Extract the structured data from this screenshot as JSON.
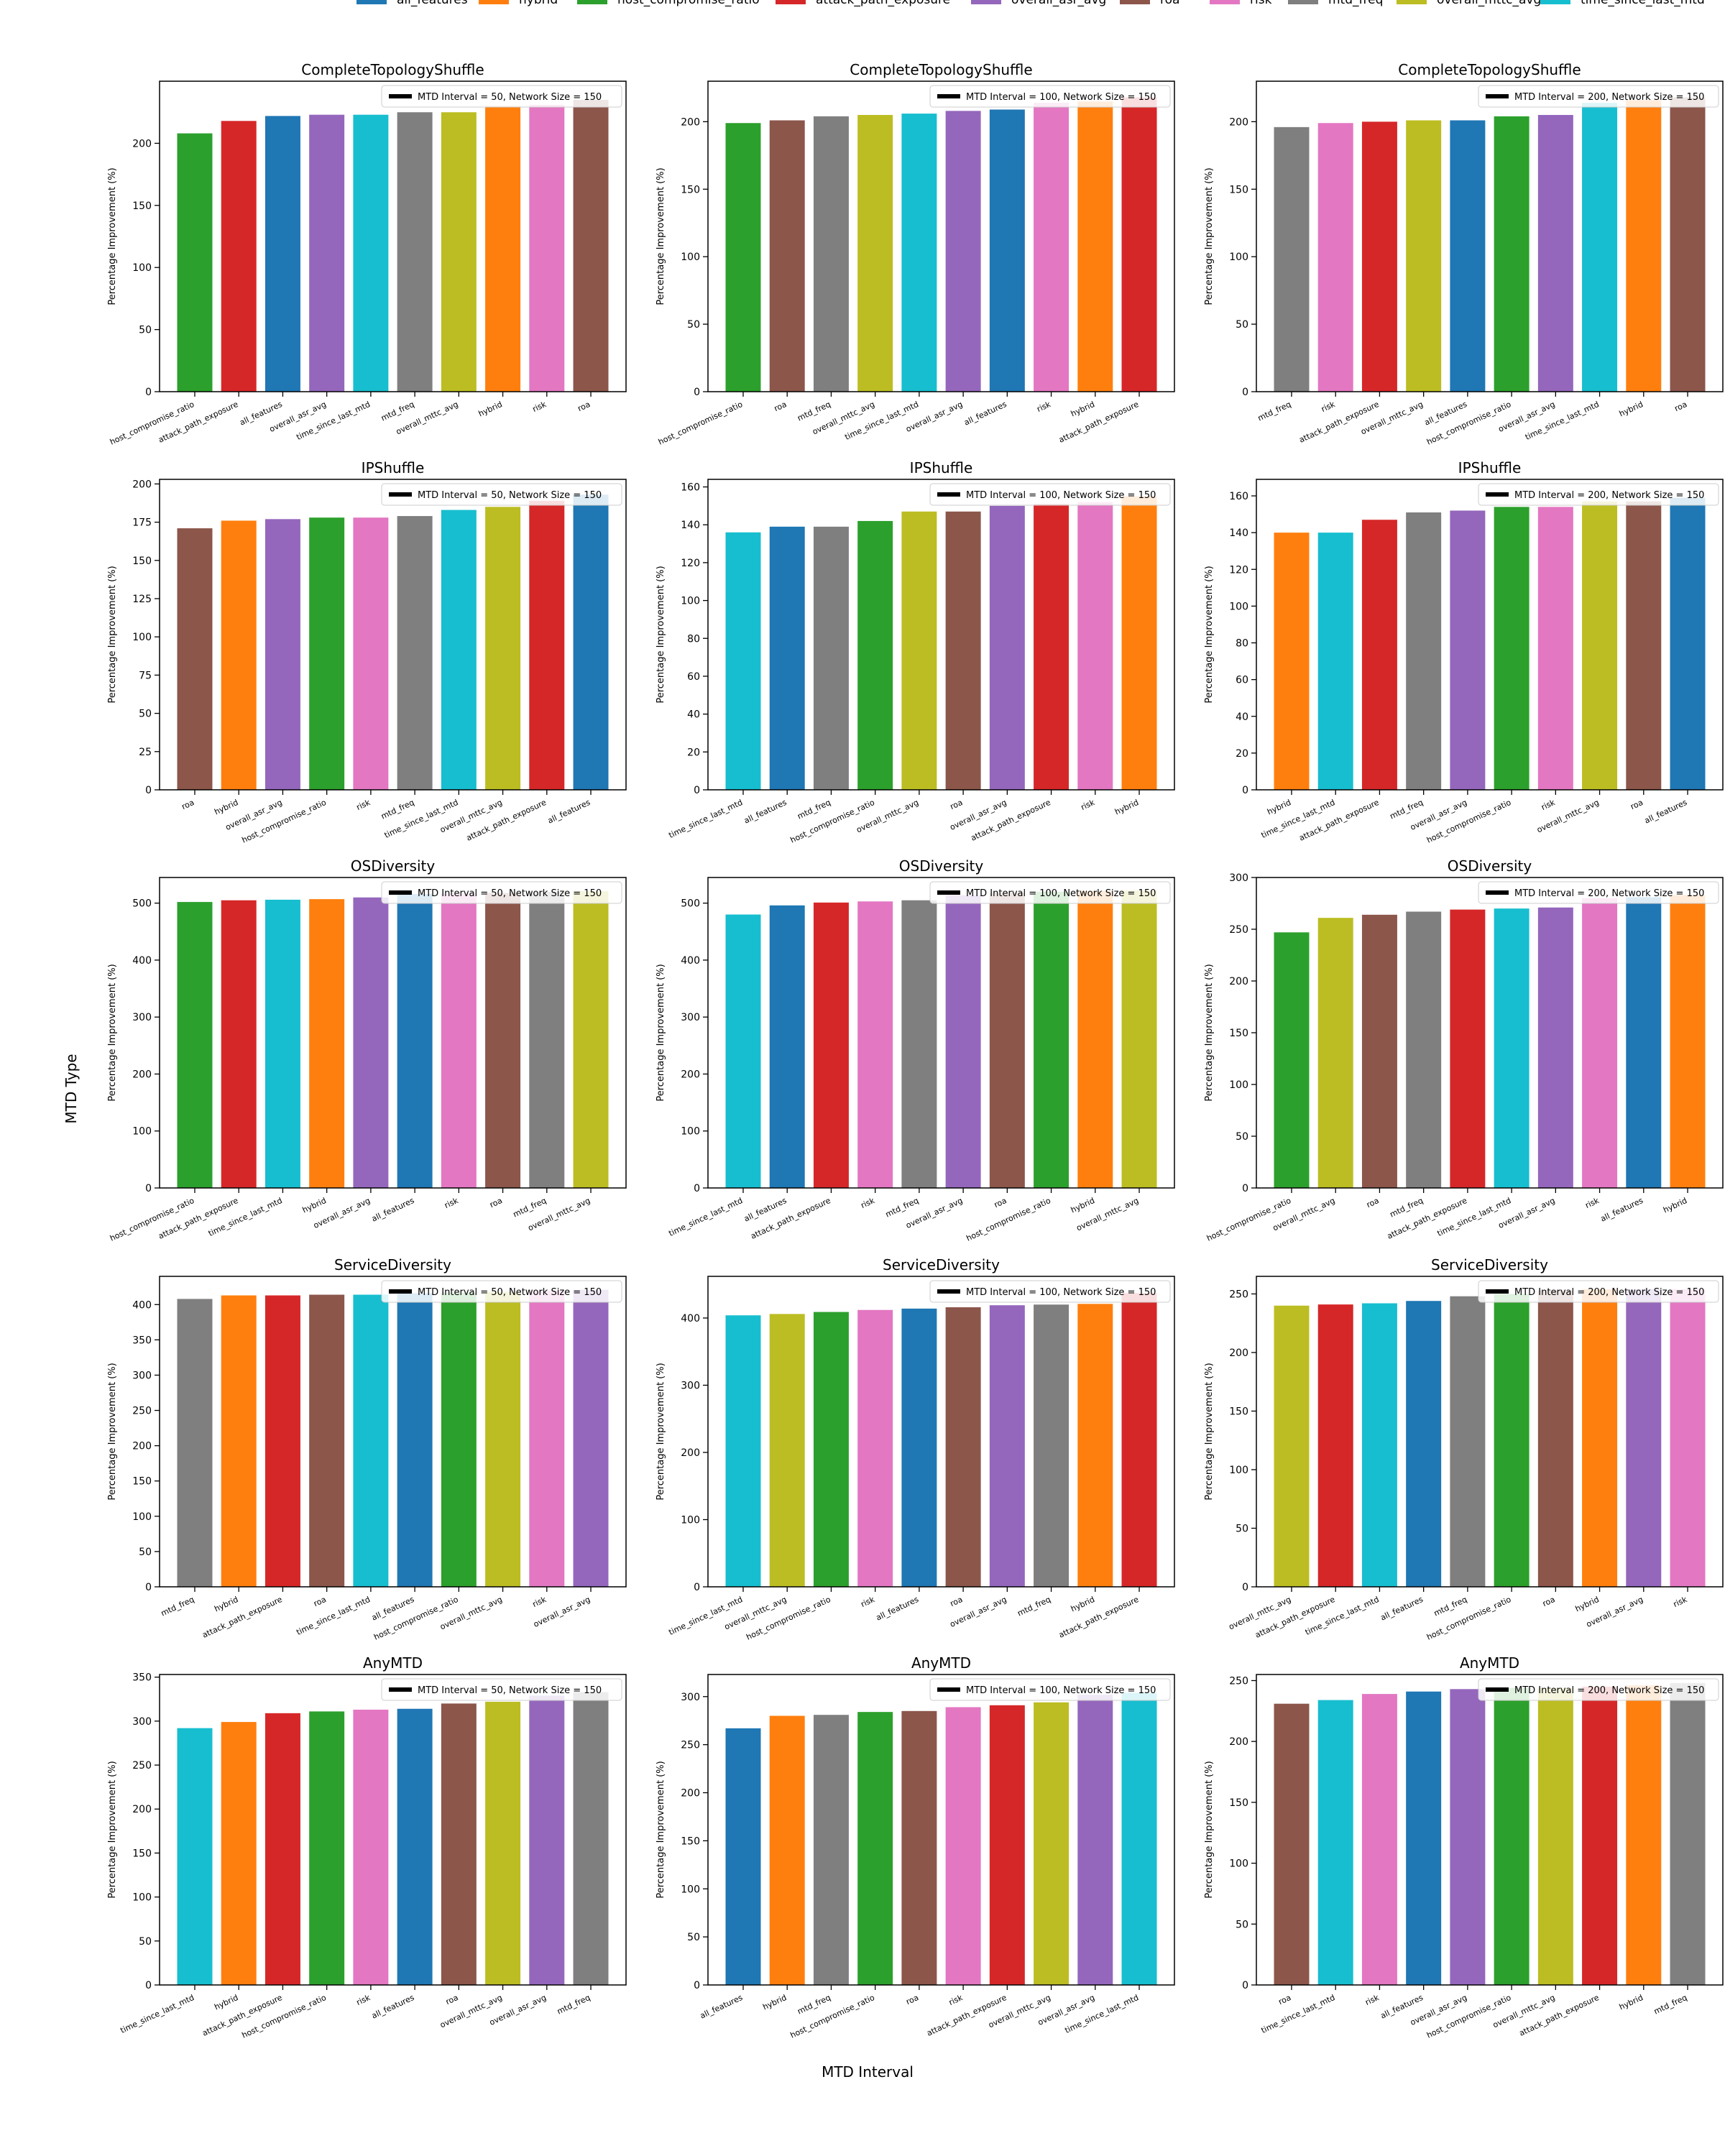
{
  "colors": {
    "all_features": "#1f77b4",
    "hybrid": "#ff7f0e",
    "host_compromise_ratio": "#2ca02c",
    "attack_path_exposure": "#d62728",
    "overall_asr_avg": "#9467bd",
    "roa": "#8c564b",
    "risk": "#e377c2",
    "mtd_freq": "#7f7f7f",
    "overall_mttc_avg": "#bcbd22",
    "time_since_last_mtd": "#17becf"
  },
  "legend": {
    "entries": [
      "all_features",
      "hybrid",
      "host_compromise_ratio",
      "attack_path_exposure",
      "overall_asr_avg",
      "roa",
      "risk",
      "mtd_freq",
      "overall_mttc_avg",
      "time_since_last_mtd"
    ]
  },
  "labels": {
    "fig_ylabel": "MTD Type",
    "fig_xlabel": "MTD Interval",
    "panel_ylabel": "Percentage Improvement (%)"
  },
  "chart_data": [
    {
      "type": "bar",
      "title": "CompleteTopologyShuffle",
      "legend": "MTD Interval = 50, Network Size = 150",
      "ylim": [
        0,
        250
      ],
      "yticks": [
        0,
        50,
        100,
        150,
        200
      ],
      "categories": [
        "host_compromise_ratio",
        "attack_path_exposure",
        "all_features",
        "overall_asr_avg",
        "time_since_last_mtd",
        "mtd_freq",
        "overall_mttc_avg",
        "hybrid",
        "risk",
        "roa"
      ],
      "values": [
        208,
        218,
        222,
        223,
        223,
        225,
        225,
        230,
        231,
        235
      ]
    },
    {
      "type": "bar",
      "title": "CompleteTopologyShuffle",
      "legend": "MTD Interval = 100, Network Size = 150",
      "ylim": [
        0,
        230
      ],
      "yticks": [
        0,
        50,
        100,
        150,
        200
      ],
      "categories": [
        "host_compromise_ratio",
        "roa",
        "mtd_freq",
        "overall_mttc_avg",
        "time_since_last_mtd",
        "overall_asr_avg",
        "all_features",
        "risk",
        "hybrid",
        "attack_path_exposure"
      ],
      "values": [
        199,
        201,
        204,
        205,
        206,
        208,
        209,
        214,
        215,
        218
      ]
    },
    {
      "type": "bar",
      "title": "CompleteTopologyShuffle",
      "legend": "MTD Interval = 200, Network Size = 150",
      "ylim": [
        0,
        230
      ],
      "yticks": [
        0,
        50,
        100,
        150,
        200
      ],
      "categories": [
        "mtd_freq",
        "risk",
        "attack_path_exposure",
        "overall_mttc_avg",
        "all_features",
        "host_compromise_ratio",
        "overall_asr_avg",
        "time_since_last_mtd",
        "hybrid",
        "roa"
      ],
      "values": [
        196,
        199,
        200,
        201,
        201,
        204,
        205,
        214,
        216,
        218
      ]
    },
    {
      "type": "bar",
      "title": "IPShuffle",
      "legend": "MTD Interval = 50, Network Size = 150",
      "ylim": [
        0,
        203
      ],
      "yticks": [
        0,
        25,
        50,
        75,
        100,
        125,
        150,
        175,
        200
      ],
      "categories": [
        "roa",
        "hybrid",
        "overall_asr_avg",
        "host_compromise_ratio",
        "risk",
        "mtd_freq",
        "time_since_last_mtd",
        "overall_mttc_avg",
        "attack_path_exposure",
        "all_features"
      ],
      "values": [
        171,
        176,
        177,
        178,
        178,
        179,
        183,
        185,
        189,
        193
      ]
    },
    {
      "type": "bar",
      "title": "IPShuffle",
      "legend": "MTD Interval = 100, Network Size = 150",
      "ylim": [
        0,
        164
      ],
      "yticks": [
        0,
        20,
        40,
        60,
        80,
        100,
        120,
        140,
        160
      ],
      "categories": [
        "time_since_last_mtd",
        "all_features",
        "mtd_freq",
        "host_compromise_ratio",
        "overall_mttc_avg",
        "roa",
        "overall_asr_avg",
        "attack_path_exposure",
        "risk",
        "hybrid"
      ],
      "values": [
        136,
        139,
        139,
        142,
        147,
        147,
        150,
        151,
        152,
        155
      ]
    },
    {
      "type": "bar",
      "title": "IPShuffle",
      "legend": "MTD Interval = 200, Network Size = 150",
      "ylim": [
        0,
        169
      ],
      "yticks": [
        0,
        20,
        40,
        60,
        80,
        100,
        120,
        140,
        160
      ],
      "categories": [
        "hybrid",
        "time_since_last_mtd",
        "attack_path_exposure",
        "mtd_freq",
        "overall_asr_avg",
        "host_compromise_ratio",
        "risk",
        "overall_mttc_avg",
        "roa",
        "all_features"
      ],
      "values": [
        140,
        140,
        147,
        151,
        152,
        154,
        154,
        157,
        157,
        159
      ]
    },
    {
      "type": "bar",
      "title": "OSDiversity",
      "legend": "MTD Interval = 50, Network Size = 150",
      "ylim": [
        0,
        545
      ],
      "yticks": [
        0,
        100,
        200,
        300,
        400,
        500
      ],
      "categories": [
        "host_compromise_ratio",
        "attack_path_exposure",
        "time_since_last_mtd",
        "hybrid",
        "overall_asr_avg",
        "all_features",
        "risk",
        "roa",
        "mtd_freq",
        "overall_mttc_avg"
      ],
      "values": [
        502,
        505,
        506,
        507,
        510,
        516,
        517,
        518,
        520,
        521
      ]
    },
    {
      "type": "bar",
      "title": "OSDiversity",
      "legend": "MTD Interval = 100, Network Size = 150",
      "ylim": [
        0,
        545
      ],
      "yticks": [
        0,
        100,
        200,
        300,
        400,
        500
      ],
      "categories": [
        "time_since_last_mtd",
        "all_features",
        "attack_path_exposure",
        "risk",
        "mtd_freq",
        "overall_asr_avg",
        "roa",
        "host_compromise_ratio",
        "hybrid",
        "overall_mttc_avg"
      ],
      "values": [
        480,
        496,
        501,
        503,
        505,
        514,
        518,
        520,
        521,
        522
      ]
    },
    {
      "type": "bar",
      "title": "OSDiversity",
      "legend": "MTD Interval = 200, Network Size = 150",
      "ylim": [
        0,
        300
      ],
      "yticks": [
        0,
        50,
        100,
        150,
        200,
        250,
        300
      ],
      "categories": [
        "host_compromise_ratio",
        "overall_mttc_avg",
        "roa",
        "mtd_freq",
        "attack_path_exposure",
        "time_since_last_mtd",
        "overall_asr_avg",
        "risk",
        "all_features",
        "hybrid"
      ],
      "values": [
        247,
        261,
        264,
        267,
        269,
        270,
        271,
        280,
        281,
        283
      ]
    },
    {
      "type": "bar",
      "title": "ServiceDiversity",
      "legend": "MTD Interval = 50, Network Size = 150",
      "ylim": [
        0,
        440
      ],
      "yticks": [
        0,
        50,
        100,
        150,
        200,
        250,
        300,
        350,
        400
      ],
      "categories": [
        "mtd_freq",
        "hybrid",
        "attack_path_exposure",
        "roa",
        "time_since_last_mtd",
        "all_features",
        "host_compromise_ratio",
        "overall_mttc_avg",
        "risk",
        "overall_asr_avg"
      ],
      "values": [
        408,
        413,
        413,
        414,
        414,
        416,
        417,
        418,
        420,
        421
      ]
    },
    {
      "type": "bar",
      "title": "ServiceDiversity",
      "legend": "MTD Interval = 100, Network Size = 150",
      "ylim": [
        0,
        462
      ],
      "yticks": [
        0,
        100,
        200,
        300,
        400
      ],
      "categories": [
        "time_since_last_mtd",
        "overall_mttc_avg",
        "host_compromise_ratio",
        "risk",
        "all_features",
        "roa",
        "overall_asr_avg",
        "mtd_freq",
        "hybrid",
        "attack_path_exposure"
      ],
      "values": [
        404,
        406,
        409,
        412,
        414,
        416,
        419,
        420,
        421,
        437
      ]
    },
    {
      "type": "bar",
      "title": "ServiceDiversity",
      "legend": "MTD Interval = 200, Network Size = 150",
      "ylim": [
        0,
        265
      ],
      "yticks": [
        0,
        50,
        100,
        150,
        200,
        250
      ],
      "categories": [
        "overall_mttc_avg",
        "attack_path_exposure",
        "time_since_last_mtd",
        "all_features",
        "mtd_freq",
        "host_compromise_ratio",
        "roa",
        "hybrid",
        "overall_asr_avg",
        "risk"
      ],
      "values": [
        240,
        241,
        242,
        244,
        248,
        250,
        253,
        254,
        254,
        254
      ]
    },
    {
      "type": "bar",
      "title": "AnyMTD",
      "legend": "MTD Interval = 50, Network Size = 150",
      "ylim": [
        0,
        353
      ],
      "yticks": [
        0,
        50,
        100,
        150,
        200,
        250,
        300,
        350
      ],
      "categories": [
        "time_since_last_mtd",
        "hybrid",
        "attack_path_exposure",
        "host_compromise_ratio",
        "risk",
        "all_features",
        "roa",
        "overall_mttc_avg",
        "overall_asr_avg",
        "mtd_freq"
      ],
      "values": [
        292,
        299,
        309,
        311,
        313,
        314,
        320,
        322,
        329,
        333
      ]
    },
    {
      "type": "bar",
      "title": "AnyMTD",
      "legend": "MTD Interval = 100, Network Size = 150",
      "ylim": [
        0,
        323
      ],
      "yticks": [
        0,
        50,
        100,
        150,
        200,
        250,
        300
      ],
      "categories": [
        "all_features",
        "hybrid",
        "mtd_freq",
        "host_compromise_ratio",
        "roa",
        "risk",
        "attack_path_exposure",
        "overall_mttc_avg",
        "overall_asr_avg",
        "time_since_last_mtd"
      ],
      "values": [
        267,
        280,
        281,
        284,
        285,
        289,
        291,
        294,
        302,
        304
      ]
    },
    {
      "type": "bar",
      "title": "AnyMTD",
      "legend": "MTD Interval = 200, Network Size = 150",
      "ylim": [
        0,
        255
      ],
      "yticks": [
        0,
        50,
        100,
        150,
        200,
        250
      ],
      "categories": [
        "roa",
        "time_since_last_mtd",
        "risk",
        "all_features",
        "overall_asr_avg",
        "host_compromise_ratio",
        "overall_mttc_avg",
        "attack_path_exposure",
        "hybrid",
        "mtd_freq"
      ],
      "values": [
        231,
        234,
        239,
        241,
        243,
        244,
        244,
        245,
        246,
        248
      ]
    }
  ]
}
